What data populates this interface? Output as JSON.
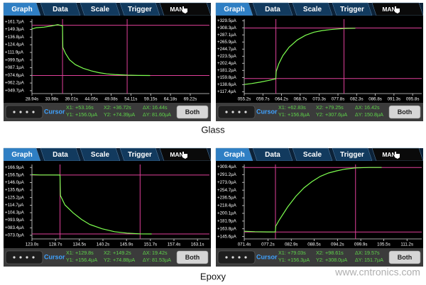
{
  "tabs": [
    "Graph",
    "Data",
    "Scale",
    "Trigger",
    "MAN"
  ],
  "cursor_label": "Cursor",
  "button": "Both",
  "readout_names": [
    "X1:",
    "X2:",
    "ΔX:",
    "Y1:",
    "Y2:",
    "ΔY:"
  ],
  "captions": [
    "Glass",
    "Epoxy"
  ],
  "watermark": "www.cntronics.com",
  "chart_data": [
    {
      "type": "line",
      "color": "#7dff4f",
      "cursor_color": "#e0409a",
      "xlim": [
        28.94,
        74.1
      ],
      "ylim": [
        45,
        166
      ],
      "xticks": [
        {
          "value": 28.94,
          "label": "28.94s"
        },
        {
          "value": 33.98,
          "label": "33.98s"
        },
        {
          "value": 39.01,
          "label": "39.01s"
        },
        {
          "value": 44.05,
          "label": "44.05s"
        },
        {
          "value": 49.08,
          "label": "49.08s"
        },
        {
          "value": 54.11,
          "label": "54.11s"
        },
        {
          "value": 59.15,
          "label": "59.15s"
        },
        {
          "value": 64.18,
          "label": "64.18s"
        },
        {
          "value": 69.22,
          "label": "69.22s"
        }
      ],
      "yticks": [
        {
          "value": 161.7,
          "label": "+161.7µA"
        },
        {
          "value": 149.3,
          "label": "+149.3µA"
        },
        {
          "value": 136.8,
          "label": "+136.8µA"
        },
        {
          "value": 124.4,
          "label": "+124.4µA"
        },
        {
          "value": 111.9,
          "label": "+111.9µA"
        },
        {
          "value": 99.5,
          "label": "+099.5µA"
        },
        {
          "value": 87.1,
          "label": "+087.1µA"
        },
        {
          "value": 74.6,
          "label": "+074.6µA"
        },
        {
          "value": 62.2,
          "label": "+062.2µA"
        },
        {
          "value": 49.7,
          "label": "+049.7µA"
        }
      ],
      "x": [
        28.94,
        30,
        32,
        34,
        35.5,
        36.7,
        36.8,
        37.5,
        38.5,
        40,
        42,
        44,
        46,
        48,
        50,
        53.2,
        56,
        59
      ],
      "values": [
        150,
        152,
        153,
        155,
        157,
        155,
        120,
        110,
        100,
        92,
        86,
        82,
        79,
        77,
        76,
        75,
        74.5,
        74.4
      ],
      "cursor_x": [
        {
          "value": 53.16,
          "label": "+53.16s"
        },
        {
          "value": 36.72,
          "label": "+36.72s"
        }
      ],
      "cursor_y": [
        {
          "value": 156.0,
          "label": "+156.0µA"
        },
        {
          "value": 74.39,
          "label": "+74.39µA"
        }
      ],
      "delta_x": "16.44s",
      "delta_y": "81.60µA"
    },
    {
      "type": "line",
      "color": "#7dff4f",
      "cursor_color": "#e0409a",
      "xlim": [
        55.2,
        98
      ],
      "ylim": [
        112,
        334
      ],
      "xticks": [
        {
          "value": 55.2,
          "label": "055.2s"
        },
        {
          "value": 59.7,
          "label": "059.7s"
        },
        {
          "value": 64.2,
          "label": "064.2s"
        },
        {
          "value": 68.7,
          "label": "068.7s"
        },
        {
          "value": 73.3,
          "label": "073.3s"
        },
        {
          "value": 77.8,
          "label": "077.8s"
        },
        {
          "value": 82.3,
          "label": "082.3s"
        },
        {
          "value": 86.8,
          "label": "086.8s"
        },
        {
          "value": 91.3,
          "label": "091.3s"
        },
        {
          "value": 95.8,
          "label": "095.8s"
        }
      ],
      "yticks": [
        {
          "value": 329.5,
          "label": "+329.5µA"
        },
        {
          "value": 308.3,
          "label": "+308.3µA"
        },
        {
          "value": 287.1,
          "label": "+287.1µA"
        },
        {
          "value": 265.9,
          "label": "+265.9µA"
        },
        {
          "value": 244.7,
          "label": "+244.7µA"
        },
        {
          "value": 223.5,
          "label": "+223.5µA"
        },
        {
          "value": 202.4,
          "label": "+202.4µA"
        },
        {
          "value": 181.2,
          "label": "+181.2µA"
        },
        {
          "value": 159.8,
          "label": "+159.8µA"
        },
        {
          "value": 138.6,
          "label": "+138.6µA"
        },
        {
          "value": 117.4,
          "label": "+117.4µA"
        }
      ],
      "x": [
        55.2,
        57,
        59,
        61,
        62.8,
        62.9,
        63.5,
        64.5,
        66,
        68,
        70,
        72,
        74,
        76,
        79.2,
        82
      ],
      "values": [
        139,
        142,
        146,
        151,
        156,
        178,
        200,
        225,
        250,
        272,
        286,
        295,
        300,
        303,
        306,
        307
      ],
      "cursor_x": [
        {
          "value": 62.83,
          "label": "+62.83s"
        },
        {
          "value": 79.25,
          "label": "+79.25s"
        }
      ],
      "cursor_y": [
        {
          "value": 156.8,
          "label": "+156.8µA"
        },
        {
          "value": 307.6,
          "label": "+307.6µA"
        }
      ],
      "delta_x": "16.42s",
      "delta_y": "150.8µA"
    },
    {
      "type": "line",
      "color": "#7dff4f",
      "cursor_color": "#e0409a",
      "xlim": [
        123.0,
        166
      ],
      "ylim": [
        68,
        171
      ],
      "xticks": [
        {
          "value": 123.0,
          "label": "123.0s"
        },
        {
          "value": 128.7,
          "label": "128.7s"
        },
        {
          "value": 134.5,
          "label": "134.5s"
        },
        {
          "value": 140.2,
          "label": "140.2s"
        },
        {
          "value": 145.9,
          "label": "145.9s"
        },
        {
          "value": 151.7,
          "label": "151.7s"
        },
        {
          "value": 157.4,
          "label": "157.4s"
        },
        {
          "value": 163.1,
          "label": "163.1s"
        }
      ],
      "yticks": [
        {
          "value": 166.9,
          "label": "+166.9µA"
        },
        {
          "value": 156.5,
          "label": "+156.5µA"
        },
        {
          "value": 146.0,
          "label": "+146.0µA"
        },
        {
          "value": 135.6,
          "label": "+135.6µA"
        },
        {
          "value": 125.2,
          "label": "+125.2µA"
        },
        {
          "value": 114.7,
          "label": "+114.7µA"
        },
        {
          "value": 104.3,
          "label": "+104.3µA"
        },
        {
          "value": 93.9,
          "label": "+093.9µA"
        },
        {
          "value": 83.4,
          "label": "+083.4µA"
        },
        {
          "value": 73.0,
          "label": "+073.0µA"
        }
      ],
      "x": [
        123,
        125,
        127,
        129.8,
        129.9,
        131,
        133,
        135,
        137,
        140,
        143,
        146,
        149.2,
        152
      ],
      "values": [
        157,
        156.5,
        156.5,
        156.4,
        128,
        115,
        104,
        95,
        88,
        82,
        78,
        76,
        75,
        74.9
      ],
      "cursor_x": [
        {
          "value": 129.8,
          "label": "+129.8s"
        },
        {
          "value": 149.2,
          "label": "+149.2s"
        }
      ],
      "cursor_y": [
        {
          "value": 156.4,
          "label": "+156.4µA"
        },
        {
          "value": 74.88,
          "label": "+74.88µA"
        }
      ],
      "delta_x": "19.42s",
      "delta_y": "81.53µA"
    },
    {
      "type": "line",
      "color": "#7dff4f",
      "cursor_color": "#e0409a",
      "xlim": [
        71.4,
        114.8
      ],
      "ylim": [
        140,
        315
      ],
      "xticks": [
        {
          "value": 71.4,
          "label": "071.4s"
        },
        {
          "value": 77.2,
          "label": "077.2s"
        },
        {
          "value": 82.9,
          "label": "082.9s"
        },
        {
          "value": 88.5,
          "label": "088.5s"
        },
        {
          "value": 94.2,
          "label": "094.2s"
        },
        {
          "value": 99.9,
          "label": "099.9s"
        },
        {
          "value": 105.5,
          "label": "105.5s"
        },
        {
          "value": 111.2,
          "label": "111.2s"
        }
      ],
      "yticks": [
        {
          "value": 309.4,
          "label": "+309.4µA"
        },
        {
          "value": 291.2,
          "label": "+291.2µA"
        },
        {
          "value": 273.0,
          "label": "+273.0µA"
        },
        {
          "value": 254.7,
          "label": "+254.7µA"
        },
        {
          "value": 236.5,
          "label": "+236.5µA"
        },
        {
          "value": 218.4,
          "label": "+218.4µA"
        },
        {
          "value": 200.1,
          "label": "+200.1µA"
        },
        {
          "value": 181.9,
          "label": "+181.9µA"
        },
        {
          "value": 163.8,
          "label": "+163.8µA"
        },
        {
          "value": 145.6,
          "label": "+145.6µA"
        }
      ],
      "x": [
        71.4,
        74,
        77,
        79,
        79.1,
        80,
        82,
        84,
        86,
        88,
        90,
        92,
        94,
        96,
        98.6,
        102,
        105
      ],
      "values": [
        158,
        157,
        156.5,
        156.3,
        170,
        185,
        215,
        240,
        260,
        275,
        287,
        295,
        300,
        304,
        307,
        308,
        308
      ],
      "cursor_x": [
        {
          "value": 79.03,
          "label": "+79.03s"
        },
        {
          "value": 98.61,
          "label": "+98.61s"
        }
      ],
      "cursor_y": [
        {
          "value": 156.3,
          "label": "+156.3µA"
        },
        {
          "value": 308.0,
          "label": "+308.0µA"
        }
      ],
      "delta_x": "19.57s",
      "delta_y": "151.7µA"
    }
  ]
}
